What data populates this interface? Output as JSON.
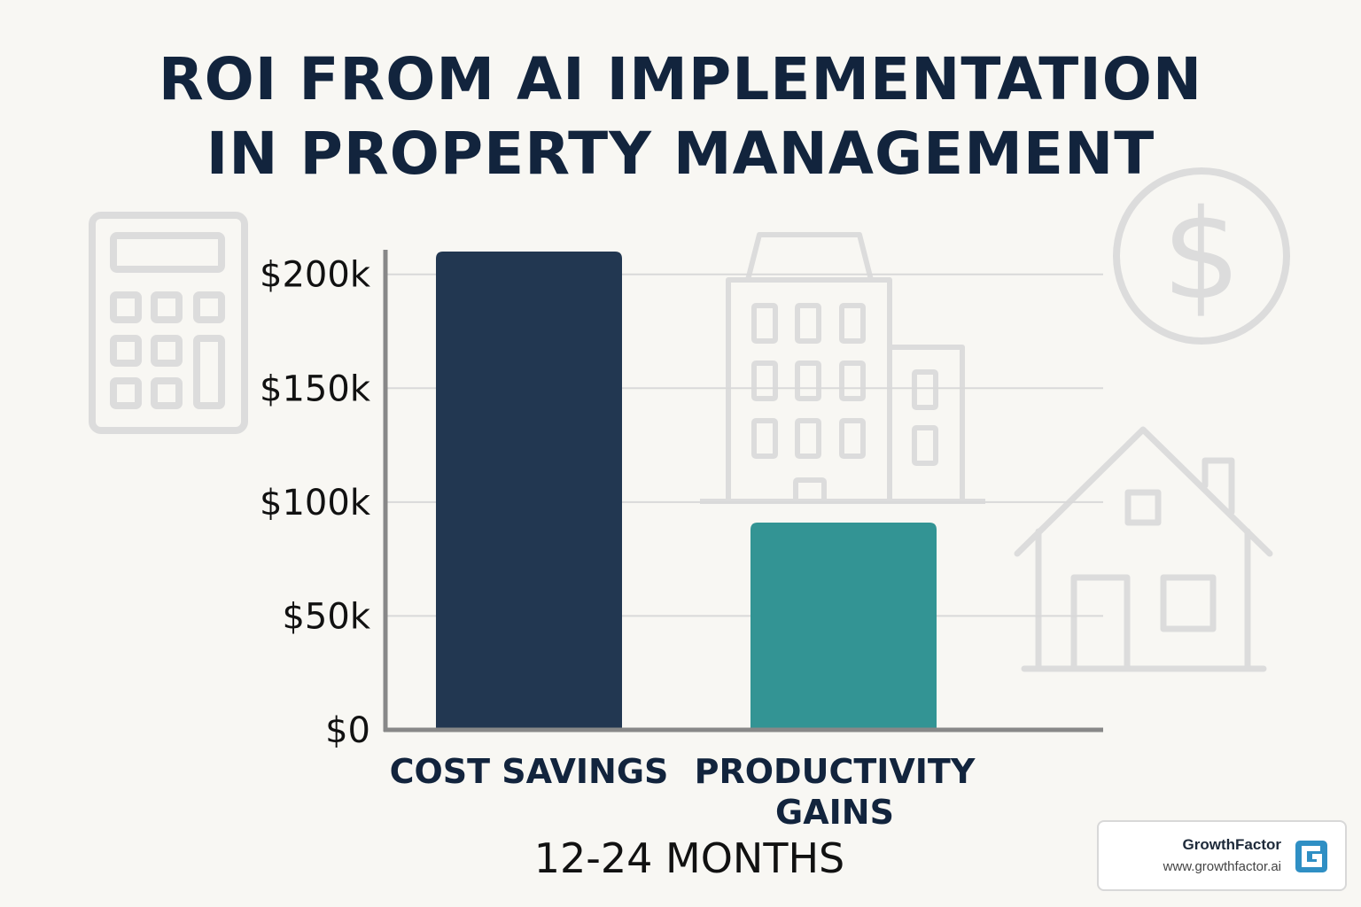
{
  "title_lines": [
    "ROI FROM AI IMPLEMENTATION",
    "IN PROPERTY MANAGEMENT"
  ],
  "chart_data": {
    "type": "bar",
    "categories": [
      "COST SAVINGS",
      "PRODUCTIVITY GAINS"
    ],
    "values": [
      210,
      91
    ],
    "bar_colors": [
      "#223751",
      "#339494"
    ],
    "y_ticks": [
      {
        "value": 0,
        "label": "$0"
      },
      {
        "value": 50,
        "label": "$50k"
      },
      {
        "value": 100,
        "label": "$100k"
      },
      {
        "value": 150,
        "label": "$150k"
      },
      {
        "value": 200,
        "label": "$200k"
      }
    ],
    "ylim": [
      0,
      210
    ],
    "xlabel": "12-24 MONTHS",
    "ylabel": "",
    "grid": true
  },
  "category_label_lines": [
    [
      "COST SAVINGS"
    ],
    [
      "PRODUCTIVITY",
      "GAINS"
    ]
  ],
  "background_icons": [
    "calculator-icon",
    "building-icon",
    "dollar-coin-icon",
    "house-icon"
  ],
  "logo": {
    "name": "GrowthFactor",
    "url": "www.growthfactor.ai",
    "mark_color": "#2f8fc4"
  }
}
